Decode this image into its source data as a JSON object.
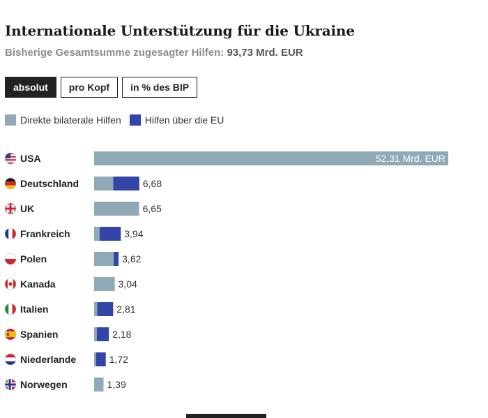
{
  "title": "Internationale Unterstützung für die Ukraine",
  "subtitle": {
    "label": "Bisherige Gesamtsumme zugesagter Hilfen:",
    "total": "93,73 Mrd. EUR"
  },
  "tabs": [
    {
      "label": "absolut",
      "active": true
    },
    {
      "label": "pro Kopf",
      "active": false
    },
    {
      "label": "in % des BIP",
      "active": false
    }
  ],
  "colors": {
    "bilateral": "#8fa9b6",
    "eu": "#3346a8"
  },
  "chart_data": {
    "type": "bar",
    "orientation": "horizontal",
    "stacked": true,
    "unit": "Mrd. EUR",
    "grid": false,
    "legend_position": "top-left",
    "series": [
      {
        "name": "Direkte bilaterale Hilfen",
        "color": "#8fa9b6",
        "values": [
          52.31,
          2.83,
          6.65,
          0.8,
          2.89,
          3.04,
          0.46,
          0.39,
          0.28,
          1.39
        ]
      },
      {
        "name": "Hilfen über die EU",
        "color": "#3346a8",
        "values": [
          0,
          3.85,
          0,
          3.14,
          0.73,
          0,
          2.35,
          1.79,
          1.44,
          0
        ]
      }
    ],
    "categories": [
      {
        "name": "USA",
        "flag": "us-flag",
        "total": 52.31,
        "label": "52,31 Mrd. EUR"
      },
      {
        "name": "Deutschland",
        "flag": "de-flag",
        "total": 6.68,
        "label": "6,68"
      },
      {
        "name": "UK",
        "flag": "uk-flag",
        "total": 6.65,
        "label": "6,65"
      },
      {
        "name": "Frankreich",
        "flag": "fr-flag",
        "total": 3.94,
        "label": "3,94"
      },
      {
        "name": "Polen",
        "flag": "pl-flag",
        "total": 3.62,
        "label": "3,62"
      },
      {
        "name": "Kanada",
        "flag": "ca-flag",
        "total": 3.04,
        "label": "3,04"
      },
      {
        "name": "Italien",
        "flag": "it-flag",
        "total": 2.81,
        "label": "2,81"
      },
      {
        "name": "Spanien",
        "flag": "es-flag",
        "total": 2.18,
        "label": "2,18"
      },
      {
        "name": "Niederlande",
        "flag": "nl-flag",
        "total": 1.72,
        "label": "1,72"
      },
      {
        "name": "Norwegen",
        "flag": "no-flag",
        "total": 1.39,
        "label": "1,39"
      }
    ]
  }
}
